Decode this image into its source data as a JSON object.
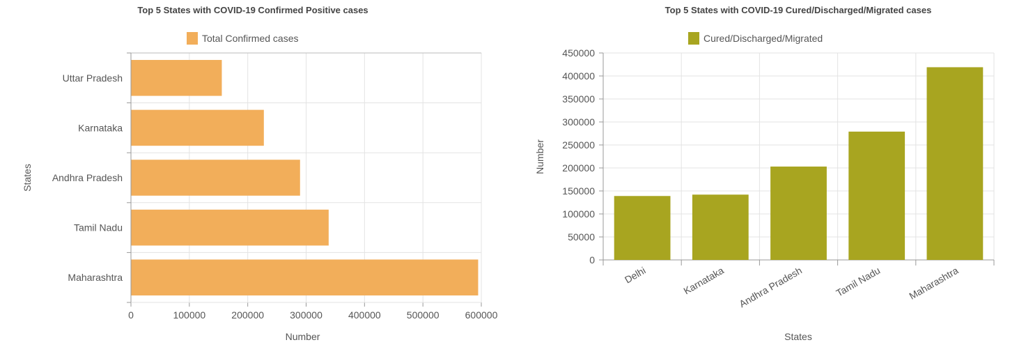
{
  "chart_data": [
    {
      "type": "bar",
      "orientation": "horizontal",
      "title": "Top 5 States with COVID-19 Confirmed Positive cases",
      "categories": [
        "Uttar Pradesh",
        "Karnataka",
        "Andhra Pradesh",
        "Tamil Nadu",
        "Maharashtra"
      ],
      "series": [
        {
          "name": "Total Confirmed cases",
          "values": [
            155000,
            227000,
            289000,
            338000,
            594000
          ],
          "color": "#f2ae5a"
        }
      ],
      "xlabel": "Number",
      "ylabel": "States",
      "xlim": [
        0,
        600000
      ],
      "xticks": [
        "0",
        "100000",
        "200000",
        "300000",
        "400000",
        "500000",
        "600000"
      ],
      "grid": true,
      "legend": "top"
    },
    {
      "type": "bar",
      "orientation": "vertical",
      "title": "Top 5 States with COVID-19 Cured/Discharged/Migrated cases",
      "categories": [
        "Delhi",
        "Karnataka",
        "Andhra Pradesh",
        "Tamil Nadu",
        "Maharashtra"
      ],
      "series": [
        {
          "name": "Cured/Discharged/Migrated",
          "values": [
            139000,
            142000,
            203000,
            279000,
            419000
          ],
          "color": "#a8a520"
        }
      ],
      "xlabel": "States",
      "ylabel": "Number",
      "ylim": [
        0,
        450000
      ],
      "yticks": [
        "0",
        "50000",
        "100000",
        "150000",
        "200000",
        "250000",
        "300000",
        "350000",
        "400000",
        "450000"
      ],
      "grid": true,
      "legend": "top"
    }
  ]
}
